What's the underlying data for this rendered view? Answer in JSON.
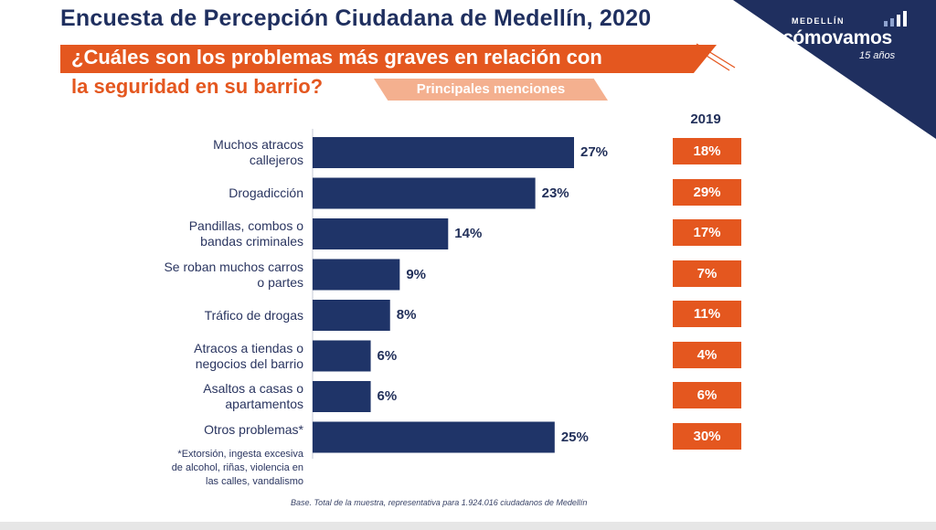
{
  "header": {
    "title": "Encuesta de Percepción Ciudadana de Medellín, 2020",
    "question_line1": "¿Cuáles son los problemas más graves en relación con",
    "question_line2": "la seguridad en su barrio?",
    "subtitle": "Principales menciones"
  },
  "logo": {
    "small": "MEDELLÍN",
    "main": "cómovamos",
    "years": "15 años",
    "icon": "bar-chart-icon"
  },
  "colors": {
    "bar": "#1f3468",
    "accent": "#e4571f",
    "accent_light": "#f4b08f",
    "navy": "#1f2f5f"
  },
  "chart_data": {
    "type": "bar",
    "orientation": "horizontal",
    "categories": [
      [
        "Muchos atracos",
        "callejeros"
      ],
      [
        "Drogadicción"
      ],
      [
        "Pandillas, combos o",
        "bandas criminales"
      ],
      [
        "Se roban muchos carros",
        "o partes"
      ],
      [
        "Tráfico de drogas"
      ],
      [
        "Atracos a tiendas o",
        "negocios del barrio"
      ],
      [
        "Asaltos a casas o",
        "apartamentos"
      ],
      [
        "Otros problemas*"
      ]
    ],
    "values": [
      27,
      23,
      14,
      9,
      8,
      6,
      6,
      25
    ],
    "value_labels": [
      "27%",
      "23%",
      "14%",
      "9%",
      "8%",
      "6%",
      "6%",
      "25%"
    ],
    "comparison": {
      "label": "2019",
      "value_labels": [
        "18%",
        "29%",
        "17%",
        "7%",
        "11%",
        "4%",
        "6%",
        "30%"
      ]
    },
    "xlim": [
      0,
      27
    ]
  },
  "footnote": [
    "*Extorsión, ingesta excesiva",
    "de alcohol, riñas, violencia en",
    "las calles, vandalismo"
  ],
  "base_note": "Base. Total de la muestra, representativa para 1.924.016 ciudadanos de Medellín"
}
